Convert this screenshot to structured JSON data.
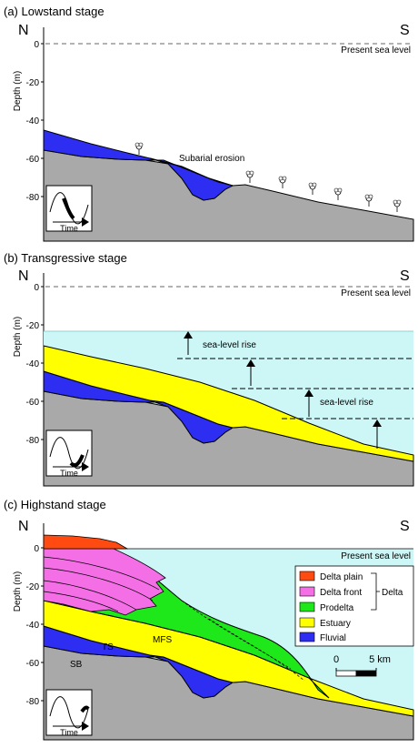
{
  "panels": [
    {
      "title": "(a) Lowstand stage",
      "north": "N",
      "south": "S",
      "y_axis_label": "Depth (m)",
      "y_ticks": [
        "0",
        "-20",
        "-40",
        "-60",
        "-80"
      ],
      "sea_level_label": "Present sea level",
      "annotations": [
        "Subarial erosion"
      ]
    },
    {
      "title": "(b) Transgressive stage",
      "north": "N",
      "south": "S",
      "y_axis_label": "Depth (m)",
      "y_ticks": [
        "0",
        "-20",
        "-40",
        "-60",
        "-80"
      ],
      "sea_level_label": "Present sea level",
      "annotations": [
        "sea-level rise",
        "sea-level rise"
      ]
    },
    {
      "title": "(c) Highstand stage",
      "north": "N",
      "south": "S",
      "y_axis_label": "Depth (m)",
      "y_ticks": [
        "0",
        "-20",
        "-40",
        "-60",
        "-80"
      ],
      "sea_level_label": "Present sea level",
      "annotations": [
        "TS",
        "MFS",
        "SB"
      ]
    }
  ],
  "inset_time_label": "Time",
  "legend": {
    "items": [
      {
        "label": "Delta plain",
        "color": "#ff4a12"
      },
      {
        "label": "Delta front",
        "color": "#f46ee6"
      },
      {
        "label": "Prodelta",
        "color": "#1ee81a"
      },
      {
        "label": "Estuary",
        "color": "#ffff00"
      },
      {
        "label": "Fluvial",
        "color": "#2e2ef2"
      }
    ],
    "group_label": "Delta"
  },
  "scale_bar": {
    "start": "0",
    "end": "5 km"
  },
  "colors": {
    "bedrock": "#a9a9a9",
    "sea": "#cdf7f7",
    "fluvial": "#2e2ef2",
    "estuary": "#ffff00",
    "prodelta": "#1ee81a",
    "delta_front": "#f46ee6",
    "delta_plain": "#ff4a12"
  }
}
